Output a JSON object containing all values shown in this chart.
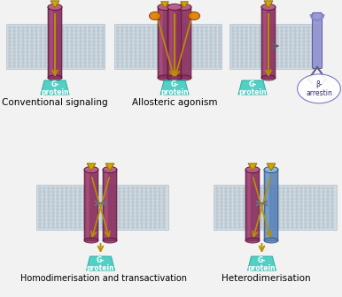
{
  "bg_color": "#f2f2f2",
  "membrane_color": "#cdd8df",
  "membrane_dot_color": "#bbc8d2",
  "receptor_color_dark": "#8B3060",
  "receptor_color_light": "#C06090",
  "receptor_blue_dark": "#5580B8",
  "receptor_blue_light": "#88BBDD",
  "gprotein_color": "#3DCCC0",
  "gprotein_text": "G-\nprotein",
  "ligand_color": "#D4A800",
  "allosteric_color": "#E08000",
  "arrow_color": "#B89000",
  "double_arrow_color": "#707080",
  "beta_arrestin_color": "#8888CC",
  "title1": "Conventional signaling",
  "title2": "Allosteric agonism",
  "title3": "Homodimerisation and transactivation",
  "title4": "Heterodimerisation",
  "title_fontsize": 7.5,
  "label_fontsize": 6.0,
  "fig_width": 3.86,
  "fig_height": 3.36,
  "dpi": 100
}
